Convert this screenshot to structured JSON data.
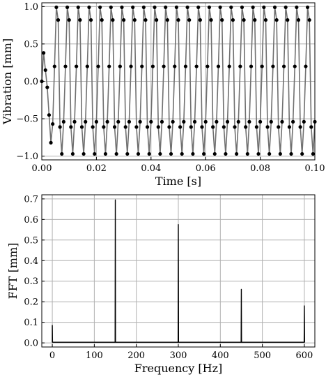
{
  "chart_data": [
    {
      "type": "line",
      "xlabel": "Time [s]",
      "ylabel": "Vibration [mm]",
      "xlim": [
        0,
        0.1
      ],
      "ylim": [
        -1.05,
        1.05
      ],
      "xticks": [
        0.0,
        0.02,
        0.04,
        0.06,
        0.08,
        0.1
      ],
      "xtick_labels": [
        "0.00",
        "0.02",
        "0.04",
        "0.06",
        "0.08",
        "0.10"
      ],
      "yticks": [
        -1.0,
        -0.5,
        0.0,
        0.5,
        1.0
      ],
      "ytick_labels": [
        "−1.0",
        "−0.5",
        "0.0",
        "0.5",
        "1.0"
      ],
      "grid": true,
      "line_color": "#707070",
      "marker_color": "#000000",
      "series": [
        {
          "x": [
            0.0,
            0.000667,
            0.001333,
            0.002,
            0.002667,
            0.003333,
            0.004,
            0.004667,
            0.005333,
            0.006,
            0.006667,
            0.007333,
            0.008,
            0.008667,
            0.009333,
            0.01,
            0.010667,
            0.011333,
            0.012,
            0.012667,
            0.013333,
            0.014,
            0.014667,
            0.015333,
            0.016,
            0.016667,
            0.017333,
            0.018,
            0.018667,
            0.019333,
            0.02,
            0.020667,
            0.021333,
            0.022,
            0.022667,
            0.023333,
            0.024,
            0.024667,
            0.025333,
            0.026,
            0.026667,
            0.027333,
            0.028,
            0.028667,
            0.029333,
            0.03,
            0.030667,
            0.031333,
            0.032,
            0.032667,
            0.033333,
            0.034,
            0.034667,
            0.035333,
            0.036,
            0.036667,
            0.037333,
            0.038,
            0.038667,
            0.039333,
            0.04,
            0.040667,
            0.041333,
            0.042,
            0.042667,
            0.043333,
            0.044,
            0.044667,
            0.045333,
            0.046,
            0.046667,
            0.047333,
            0.048,
            0.048667,
            0.049333,
            0.05,
            0.050667,
            0.051333,
            0.052,
            0.052667,
            0.053333,
            0.054,
            0.054667,
            0.055333,
            0.056,
            0.056667,
            0.057333,
            0.058,
            0.058667,
            0.059333,
            0.06,
            0.060667,
            0.061333,
            0.062,
            0.062667,
            0.063333,
            0.064,
            0.064667,
            0.065333,
            0.066,
            0.066667,
            0.067333,
            0.068,
            0.068667,
            0.069333,
            0.07,
            0.070667,
            0.071333,
            0.072,
            0.072667,
            0.073333,
            0.074,
            0.074667,
            0.075333,
            0.076,
            0.076667,
            0.077333,
            0.078,
            0.078667,
            0.079333,
            0.08,
            0.080667,
            0.081333,
            0.082,
            0.082667,
            0.083333,
            0.084,
            0.084667,
            0.085333,
            0.086,
            0.086667,
            0.087333,
            0.088,
            0.088667,
            0.089333,
            0.09,
            0.090667,
            0.091333,
            0.092,
            0.092667,
            0.093333,
            0.094,
            0.094667,
            0.095333,
            0.096,
            0.096667,
            0.097333,
            0.098,
            0.098667,
            0.099333,
            0.1
          ],
          "y": [
            0.0,
            0.38,
            0.15,
            -0.08,
            -0.45,
            -0.82,
            -0.57,
            0.2,
            0.99,
            0.82,
            -0.61,
            -0.97,
            -0.54,
            0.2,
            0.99,
            0.82,
            -0.61,
            -0.97,
            -0.54,
            0.2,
            0.99,
            0.82,
            -0.61,
            -0.97,
            -0.54,
            0.2,
            0.99,
            0.82,
            -0.61,
            -0.97,
            -0.54,
            0.2,
            0.99,
            0.82,
            -0.61,
            -0.97,
            -0.54,
            0.2,
            0.99,
            0.82,
            -0.61,
            -0.97,
            -0.54,
            0.2,
            0.99,
            0.82,
            -0.61,
            -0.97,
            -0.54,
            0.2,
            0.99,
            0.82,
            -0.61,
            -0.97,
            -0.54,
            0.2,
            0.99,
            0.82,
            -0.61,
            -0.97,
            -0.54,
            0.2,
            0.99,
            0.82,
            -0.61,
            -0.97,
            -0.54,
            0.2,
            0.99,
            0.82,
            -0.61,
            -0.97,
            -0.54,
            0.2,
            0.99,
            0.82,
            -0.61,
            -0.97,
            -0.54,
            0.2,
            0.99,
            0.82,
            -0.61,
            -0.97,
            -0.54,
            0.2,
            0.99,
            0.82,
            -0.61,
            -0.97,
            -0.54,
            0.2,
            0.99,
            0.82,
            -0.61,
            -0.97,
            -0.54,
            0.2,
            0.99,
            0.82,
            -0.61,
            -0.97,
            -0.54,
            0.2,
            0.99,
            0.82,
            -0.61,
            -0.97,
            -0.54,
            0.2,
            0.99,
            0.82,
            -0.61,
            -0.97,
            -0.54,
            0.2,
            0.99,
            0.82,
            -0.61,
            -0.97,
            -0.54,
            0.2,
            0.99,
            0.82,
            -0.61,
            -0.97,
            -0.54,
            0.2,
            0.99,
            0.82,
            -0.61,
            -0.97,
            -0.54,
            0.2,
            0.99,
            0.82,
            -0.61,
            -0.97,
            -0.54,
            0.2,
            0.99,
            0.82,
            -0.61,
            -0.97,
            -0.54,
            0.2,
            0.99,
            0.82,
            -0.61,
            -0.97,
            -0.54
          ]
        }
      ]
    },
    {
      "type": "line",
      "xlabel": "Frequency [Hz]",
      "ylabel": "FFT [mm]",
      "xlim": [
        -25,
        625
      ],
      "ylim": [
        -0.02,
        0.72
      ],
      "xticks": [
        0,
        100,
        200,
        300,
        400,
        500,
        600
      ],
      "xtick_labels": [
        "0",
        "100",
        "200",
        "300",
        "400",
        "500",
        "600"
      ],
      "yticks": [
        0.0,
        0.1,
        0.2,
        0.3,
        0.4,
        0.5,
        0.6,
        0.7
      ],
      "ytick_labels": [
        "0.0",
        "0.1",
        "0.2",
        "0.3",
        "0.4",
        "0.5",
        "0.6",
        "0.7"
      ],
      "grid": true,
      "line_color": "#000000",
      "series": [
        {
          "x": [
            0,
            0,
            0.5,
            149,
            149.5,
            150,
            150.5,
            151,
            299,
            299.5,
            300,
            300.5,
            301,
            449,
            449.5,
            450,
            450.5,
            451,
            599,
            599.5,
            600,
            600.5,
            601
          ],
          "y": [
            0.003,
            0.085,
            0.003,
            0.003,
            0.003,
            0.695,
            0.003,
            0.003,
            0.003,
            0.003,
            0.575,
            0.003,
            0.003,
            0.003,
            0.003,
            0.26,
            0.003,
            0.003,
            0.003,
            0.003,
            0.18,
            0.003,
            0.003
          ]
        }
      ]
    }
  ]
}
